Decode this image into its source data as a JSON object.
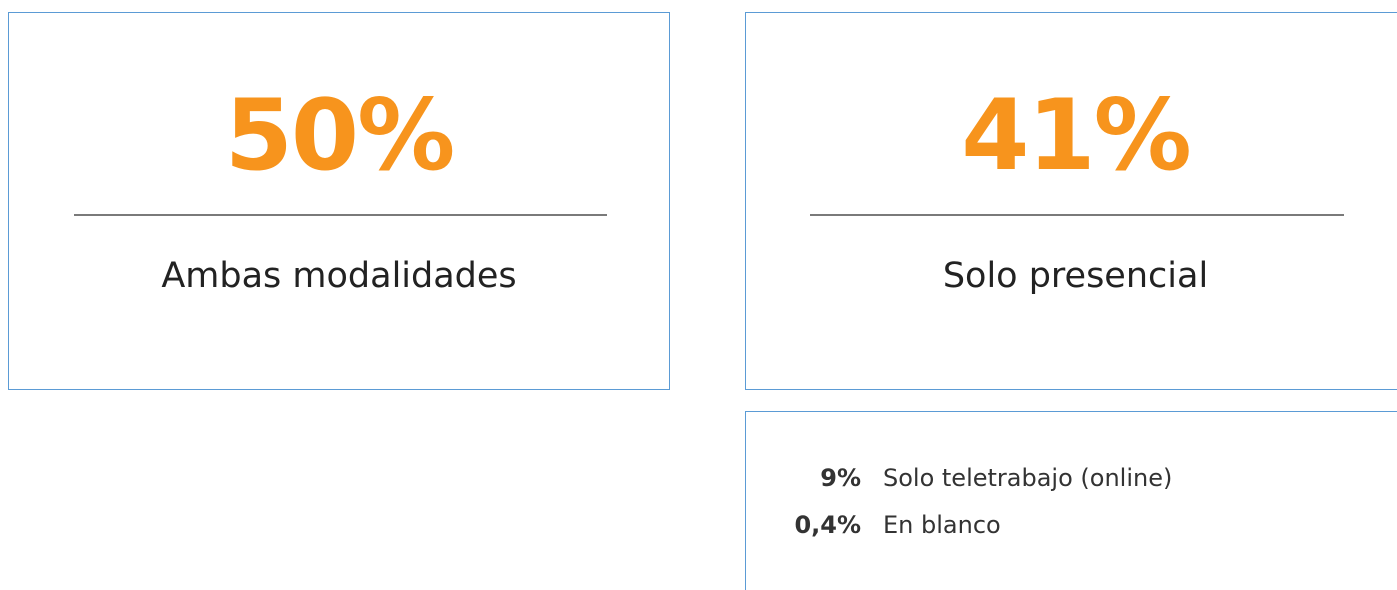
{
  "cards": [
    {
      "value": "50%",
      "label": "Ambas modalidades"
    },
    {
      "value": "41%",
      "label": "Solo presencial"
    }
  ],
  "list": [
    {
      "value": "9%",
      "label": "Solo teletrabajo (online)"
    },
    {
      "value": "0,4%",
      "label": "En blanco"
    }
  ]
}
